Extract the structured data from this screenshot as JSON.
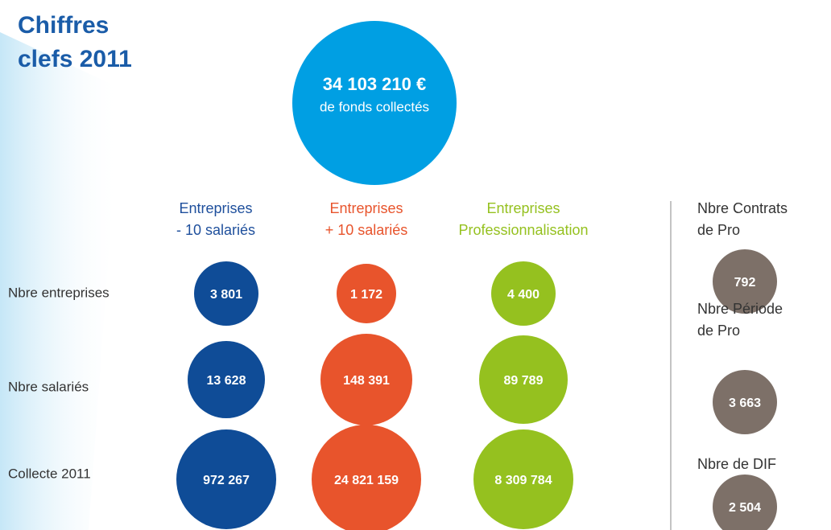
{
  "title": [
    "Chiffres",
    "clefs 2011"
  ],
  "headline": {
    "value": "34 103 210 €",
    "caption": "de fonds collectés"
  },
  "columns": [
    {
      "label": [
        "Entreprises",
        "- 10 salariés"
      ]
    },
    {
      "label": [
        "Entreprises",
        "+ 10 salariés"
      ]
    },
    {
      "label": [
        "Entreprises",
        "Professionnalisation"
      ]
    }
  ],
  "rows": [
    {
      "label": "Nbre entreprises",
      "values": [
        "3 801",
        "1 172",
        "4 400"
      ]
    },
    {
      "label": "Nbre salariés",
      "values": [
        "13 628",
        "148 391",
        "89 789"
      ]
    },
    {
      "label": "Collecte 2011",
      "values": [
        "972 267",
        "24 821 159",
        "8 309 784"
      ]
    }
  ],
  "side": [
    {
      "label": [
        "Nbre Contrats",
        "de Pro"
      ],
      "value": "792"
    },
    {
      "label": [
        "Nbre Période",
        "de Pro"
      ],
      "value": "3 663"
    },
    {
      "label": [
        "Nbre de DIF"
      ],
      "value": "2 504"
    }
  ]
}
